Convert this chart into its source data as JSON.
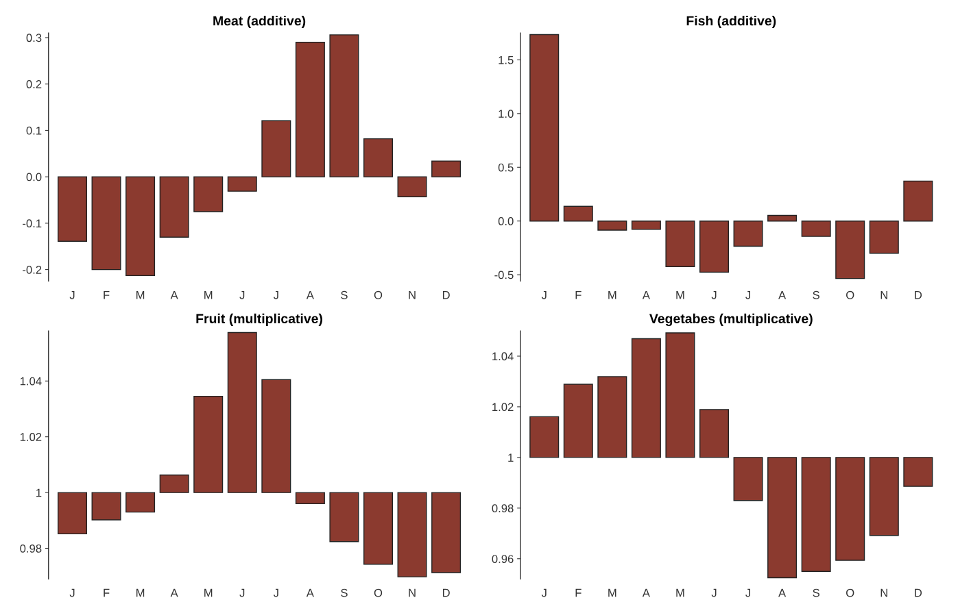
{
  "chart_data": [
    {
      "type": "bar",
      "title": "Meat (additive)",
      "categories": [
        "J",
        "F",
        "M",
        "A",
        "M",
        "J",
        "J",
        "A",
        "S",
        "O",
        "N",
        "D"
      ],
      "color": "#8b3a2f",
      "values": [
        -0.139,
        -0.2,
        -0.213,
        -0.13,
        -0.075,
        -0.031,
        0.121,
        0.29,
        0.306,
        0.082,
        -0.043,
        0.034
      ],
      "ylim": [
        -0.225,
        0.31
      ],
      "yticks": [
        {
          "value": -0.2,
          "label": "-0.2"
        },
        {
          "value": -0.1,
          "label": "-0.1"
        },
        {
          "value": 0,
          "label": "0.0"
        },
        0.1,
        0.2,
        0.3
      ],
      "grid": false
    },
    {
      "type": "bar",
      "title": "Fish (additive)",
      "categories": [
        "J",
        "F",
        "M",
        "A",
        "M",
        "J",
        "J",
        "A",
        "S",
        "O",
        "N",
        "D"
      ],
      "color": "#8b3a2f",
      "values": [
        1.735,
        0.137,
        -0.085,
        -0.078,
        -0.424,
        -0.476,
        -0.235,
        0.052,
        -0.143,
        -0.535,
        -0.3,
        0.372
      ],
      "ylim": [
        -0.56,
        1.75
      ],
      "yticks": [
        {
          "value": -0.5,
          "label": "-0.5"
        },
        {
          "value": 0,
          "label": "0.0"
        },
        0.5,
        {
          "value": 1,
          "label": "1.0"
        },
        1.5
      ],
      "grid": false
    },
    {
      "type": "bar",
      "title": "Fruit (multiplicative)",
      "categories": [
        "J",
        "F",
        "M",
        "A",
        "M",
        "J",
        "J",
        "A",
        "S",
        "O",
        "N",
        "D"
      ],
      "color": "#8b3a2f",
      "base": [
        1,
        1,
        1,
        1,
        1,
        1,
        1,
        1,
        1,
        1,
        1,
        1
      ],
      "values": [
        -0.0148,
        -0.0098,
        -0.007,
        0.0063,
        0.0345,
        0.0574,
        0.0405,
        -0.004,
        -0.0176,
        -0.0257,
        -0.0302,
        -0.0287
      ],
      "ylim": [
        0.969,
        1.058
      ],
      "yticks": [
        0.98,
        1,
        1.02,
        1.04
      ],
      "grid": false
    },
    {
      "type": "bar",
      "title": "Vegetabes (multiplicative)",
      "categories": [
        "J",
        "F",
        "M",
        "A",
        "M",
        "J",
        "J",
        "A",
        "S",
        "O",
        "N",
        "D"
      ],
      "color": "#8b3a2f",
      "base": [
        1,
        1,
        1,
        1,
        1,
        1,
        1,
        1,
        1,
        1,
        1,
        1
      ],
      "values": [
        0.0161,
        0.0289,
        0.0319,
        0.0469,
        0.0492,
        0.0189,
        -0.017,
        -0.0475,
        -0.045,
        -0.0406,
        -0.0308,
        -0.0114
      ],
      "ylim": [
        0.952,
        1.05
      ],
      "yticks": [
        0.96,
        0.98,
        1,
        1.02,
        1.04
      ],
      "grid": false
    }
  ]
}
